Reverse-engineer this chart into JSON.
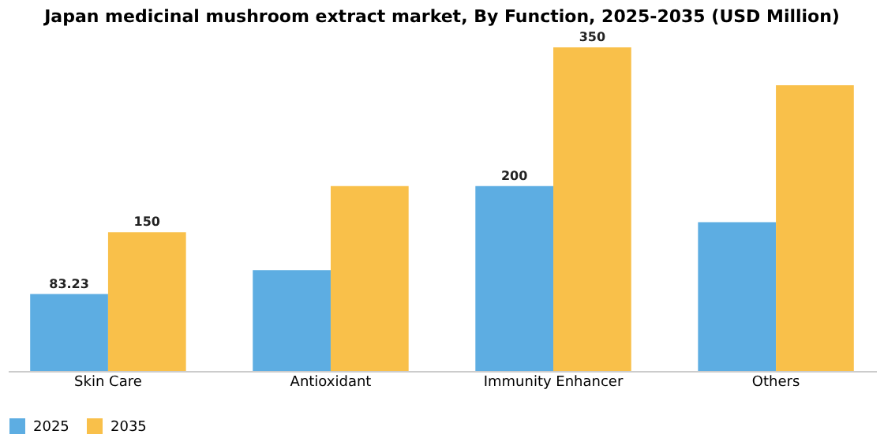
{
  "chart_data": {
    "type": "bar",
    "title": "Japan medicinal mushroom extract market, By Function, 2025-2035 (USD Million)",
    "categories": [
      "Skin Care",
      "Antioxidant",
      "Immunity Enhancer",
      "Others"
    ],
    "series": [
      {
        "name": "2025",
        "color": "#5dade2",
        "values": [
          83.23,
          109,
          200,
          161
        ],
        "value_labels": [
          "83.23",
          null,
          "200",
          null
        ]
      },
      {
        "name": "2035",
        "color": "#f9c04a",
        "values": [
          150,
          200,
          350,
          309
        ],
        "value_labels": [
          "150",
          null,
          "350",
          null
        ]
      }
    ],
    "legend": "bottom",
    "grid": false
  }
}
